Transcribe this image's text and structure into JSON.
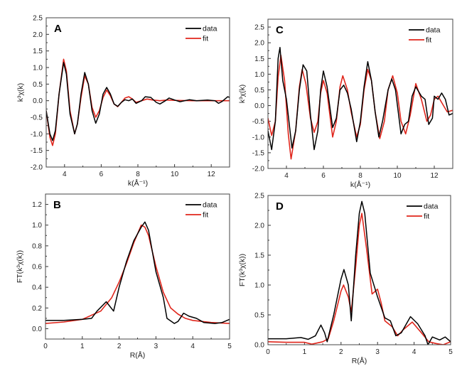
{
  "colors": {
    "data": "#000000",
    "fit": "#e0261c"
  },
  "chart_data": [
    {
      "panel": "A",
      "type": "line",
      "xlabel": "k(Å⁻¹)",
      "ylabel": "k³χ(k)",
      "xlim": [
        3,
        13
      ],
      "ylim": [
        -2.0,
        2.5
      ],
      "xticks": [
        4,
        6,
        8,
        10,
        12
      ],
      "xtick_labels": [
        "4",
        "6",
        "8",
        "10",
        "12"
      ],
      "yticks": [
        -2.0,
        -1.5,
        -1.0,
        -0.5,
        0.0,
        0.5,
        1.0,
        1.5,
        2.0,
        2.5
      ],
      "ytick_labels": [
        "-2.0",
        "-1.5",
        "-1.0",
        "-0.5",
        "0.0",
        "0.5",
        "1.0",
        "1.5",
        "2.0",
        "2.5"
      ],
      "legend": "top-right",
      "series": [
        {
          "name": "data",
          "color": "#000000",
          "x": [
            3.0,
            3.2,
            3.35,
            3.5,
            3.7,
            3.95,
            4.1,
            4.3,
            4.55,
            4.7,
            4.9,
            5.1,
            5.3,
            5.5,
            5.7,
            5.9,
            6.1,
            6.3,
            6.5,
            6.7,
            6.9,
            7.1,
            7.3,
            7.5,
            7.7,
            7.9,
            8.2,
            8.4,
            8.7,
            9.0,
            9.2,
            9.5,
            9.7,
            10.0,
            10.3,
            10.8,
            11.2,
            11.8,
            12.2,
            12.4,
            12.6,
            12.9,
            13.0
          ],
          "y": [
            -0.3,
            -1.0,
            -1.2,
            -0.9,
            0.2,
            1.15,
            0.8,
            -0.4,
            -1.0,
            -0.7,
            0.2,
            0.85,
            0.5,
            -0.3,
            -0.68,
            -0.4,
            0.2,
            0.4,
            0.2,
            -0.1,
            -0.17,
            -0.05,
            0.03,
            0.0,
            0.05,
            -0.08,
            0.0,
            0.12,
            0.1,
            -0.05,
            -0.1,
            0.0,
            0.08,
            0.02,
            -0.03,
            0.03,
            0.0,
            0.02,
            0.0,
            -0.08,
            -0.02,
            0.12,
            0.1
          ]
        },
        {
          "name": "fit",
          "color": "#e0261c",
          "x": [
            3.0,
            3.2,
            3.35,
            3.5,
            3.7,
            3.95,
            4.1,
            4.3,
            4.55,
            4.7,
            4.9,
            5.1,
            5.3,
            5.5,
            5.7,
            5.9,
            6.1,
            6.3,
            6.5,
            6.7,
            6.9,
            7.1,
            7.3,
            7.5,
            7.7,
            7.9,
            8.2,
            8.5,
            8.8,
            9.2,
            9.6,
            10.0,
            11.0,
            13.0
          ],
          "y": [
            -0.3,
            -1.1,
            -1.35,
            -1.0,
            0.2,
            1.25,
            0.9,
            -0.3,
            -1.0,
            -0.7,
            0.1,
            0.75,
            0.5,
            -0.2,
            -0.5,
            -0.3,
            0.1,
            0.32,
            0.15,
            -0.1,
            -0.18,
            -0.05,
            0.08,
            0.12,
            0.05,
            -0.05,
            0.0,
            0.05,
            0.02,
            0.0,
            0.02,
            0.01,
            0.0,
            0.0
          ]
        }
      ]
    },
    {
      "panel": "C",
      "type": "line",
      "xlabel": "k(Å⁻¹)",
      "ylabel": "k³χ(k)",
      "xlim": [
        3,
        13
      ],
      "ylim": [
        -2.0,
        2.75
      ],
      "xticks": [
        4,
        6,
        8,
        10,
        12
      ],
      "xtick_labels": [
        "4",
        "6",
        "8",
        "10",
        "12"
      ],
      "yticks": [
        -2.0,
        -1.5,
        -1.0,
        -0.5,
        0.0,
        0.5,
        1.0,
        1.5,
        2.0,
        2.5
      ],
      "ytick_labels": [
        "-2.0",
        "-1.5",
        "-1.0",
        "-0.5",
        "0.0",
        "0.5",
        "1.0",
        "1.5",
        "2.0",
        "2.5"
      ],
      "legend": "top-right",
      "series": [
        {
          "name": "data",
          "color": "#000000",
          "x": [
            3.0,
            3.2,
            3.4,
            3.55,
            3.65,
            3.8,
            4.0,
            4.3,
            4.5,
            4.7,
            4.9,
            5.1,
            5.3,
            5.5,
            5.7,
            5.85,
            6.0,
            6.2,
            6.5,
            6.7,
            6.9,
            7.1,
            7.3,
            7.5,
            7.8,
            8.0,
            8.2,
            8.4,
            8.6,
            8.8,
            9.0,
            9.2,
            9.5,
            9.7,
            9.9,
            10.2,
            10.4,
            10.6,
            10.8,
            11.0,
            11.3,
            11.5,
            11.7,
            11.9,
            12.0,
            12.2,
            12.4,
            12.6,
            12.8,
            13.0
          ],
          "y": [
            -0.8,
            -1.4,
            -0.5,
            1.5,
            1.85,
            0.8,
            0.2,
            -1.35,
            -0.8,
            0.5,
            1.3,
            1.1,
            -0.3,
            -1.4,
            -0.8,
            0.5,
            1.1,
            0.6,
            -0.7,
            -0.4,
            0.5,
            0.65,
            0.4,
            -0.1,
            -1.15,
            -0.5,
            0.6,
            1.4,
            0.8,
            -0.2,
            -1.0,
            -0.5,
            0.5,
            0.85,
            0.5,
            -0.9,
            -0.6,
            -0.5,
            0.3,
            0.6,
            0.3,
            0.2,
            -0.6,
            -0.4,
            0.3,
            0.2,
            0.4,
            0.2,
            -0.3,
            -0.25
          ]
        },
        {
          "name": "fit",
          "color": "#e0261c",
          "x": [
            3.0,
            3.2,
            3.4,
            3.55,
            3.7,
            3.9,
            4.1,
            4.25,
            4.5,
            4.7,
            4.85,
            5.05,
            5.3,
            5.5,
            5.7,
            5.85,
            6.0,
            6.2,
            6.5,
            6.7,
            6.9,
            7.05,
            7.3,
            7.5,
            7.8,
            8.0,
            8.2,
            8.4,
            8.6,
            8.8,
            9.05,
            9.3,
            9.5,
            9.75,
            10.0,
            10.2,
            10.45,
            10.7,
            11.0,
            11.3,
            11.6,
            11.8,
            12.0,
            12.2,
            12.5,
            12.7,
            13.0
          ],
          "y": [
            -0.4,
            -0.95,
            -0.5,
            0.9,
            1.6,
            0.8,
            -0.9,
            -1.7,
            -0.8,
            0.6,
            1.15,
            0.7,
            -0.4,
            -0.85,
            -0.5,
            0.4,
            0.8,
            0.4,
            -1.0,
            -0.5,
            0.6,
            0.95,
            0.5,
            -0.2,
            -1.0,
            -0.6,
            0.5,
            1.15,
            0.8,
            -0.2,
            -1.05,
            -0.5,
            0.5,
            0.95,
            0.4,
            -0.5,
            -0.9,
            -0.3,
            0.7,
            0.2,
            -0.5,
            -0.3,
            0.2,
            0.3,
            0.0,
            -0.2,
            -0.15
          ]
        }
      ]
    },
    {
      "panel": "B",
      "type": "line",
      "xlabel": "R(Å)",
      "ylabel": "FT(k³χ(k))",
      "xlim": [
        0,
        5
      ],
      "ylim": [
        -0.1,
        1.3
      ],
      "xticks": [
        0,
        1,
        2,
        3,
        4,
        5
      ],
      "xtick_labels": [
        "0",
        "1",
        "2",
        "3",
        "4",
        "5"
      ],
      "yticks": [
        0.0,
        0.2,
        0.4,
        0.6,
        0.8,
        1.0,
        1.2
      ],
      "ytick_labels": [
        "0.0",
        "0.2",
        "0.4",
        "0.6",
        "0.8",
        "1.0",
        "1.2"
      ],
      "legend": "top-right",
      "series": [
        {
          "name": "data",
          "color": "#000000",
          "x": [
            0,
            0.5,
            1.0,
            1.25,
            1.4,
            1.65,
            1.85,
            2.0,
            2.2,
            2.4,
            2.6,
            2.7,
            2.8,
            3.0,
            3.2,
            3.3,
            3.5,
            3.6,
            3.75,
            3.9,
            4.1,
            4.3,
            4.6,
            4.8,
            5.0
          ],
          "y": [
            0.08,
            0.08,
            0.09,
            0.1,
            0.17,
            0.26,
            0.17,
            0.4,
            0.65,
            0.85,
            0.98,
            1.03,
            0.95,
            0.55,
            0.3,
            0.1,
            0.05,
            0.07,
            0.15,
            0.12,
            0.1,
            0.06,
            0.05,
            0.06,
            0.09
          ]
        },
        {
          "name": "fit",
          "color": "#e0261c",
          "x": [
            0,
            0.5,
            1.0,
            1.5,
            1.8,
            2.0,
            2.2,
            2.4,
            2.6,
            2.7,
            2.8,
            3.0,
            3.2,
            3.4,
            3.6,
            3.8,
            4.0,
            4.5,
            5.0
          ],
          "y": [
            0.05,
            0.065,
            0.09,
            0.17,
            0.3,
            0.45,
            0.63,
            0.83,
            1.0,
            0.98,
            0.9,
            0.6,
            0.35,
            0.2,
            0.14,
            0.1,
            0.08,
            0.06,
            0.05
          ]
        }
      ]
    },
    {
      "panel": "D",
      "type": "line",
      "xlabel": "R(Å)",
      "ylabel": "FT(k³χ(k))",
      "xlim": [
        0,
        5
      ],
      "ylim": [
        0.0,
        2.5
      ],
      "xticks": [
        0,
        1,
        2,
        3,
        4,
        5
      ],
      "xtick_labels": [
        "0",
        "1",
        "2",
        "3",
        "4",
        "5"
      ],
      "yticks": [
        0.0,
        0.5,
        1.0,
        1.5,
        2.0,
        2.5
      ],
      "ytick_labels": [
        "0.0",
        "0.5",
        "1.0",
        "1.5",
        "2.0",
        "2.5"
      ],
      "legend": "top-right",
      "series": [
        {
          "name": "data",
          "color": "#000000",
          "x": [
            0,
            0.5,
            0.9,
            1.1,
            1.3,
            1.45,
            1.55,
            1.62,
            1.8,
            2.0,
            2.08,
            2.2,
            2.28,
            2.4,
            2.5,
            2.57,
            2.65,
            2.8,
            3.0,
            3.2,
            3.35,
            3.5,
            3.65,
            3.9,
            4.1,
            4.3,
            4.38,
            4.5,
            4.7,
            4.85,
            5.0
          ],
          "y": [
            0.1,
            0.1,
            0.12,
            0.09,
            0.15,
            0.33,
            0.2,
            0.05,
            0.5,
            1.1,
            1.26,
            1.0,
            0.4,
            1.5,
            2.2,
            2.4,
            2.2,
            1.2,
            0.8,
            0.45,
            0.4,
            0.15,
            0.2,
            0.47,
            0.35,
            0.15,
            0.0,
            0.13,
            0.08,
            0.13,
            0.05
          ]
        },
        {
          "name": "fit",
          "color": "#e0261c",
          "x": [
            0,
            0.5,
            1.0,
            1.2,
            1.5,
            1.65,
            1.8,
            2.0,
            2.07,
            2.2,
            2.28,
            2.4,
            2.5,
            2.57,
            2.7,
            2.85,
            3.0,
            3.1,
            3.2,
            3.4,
            3.55,
            3.7,
            3.95,
            4.2,
            4.4,
            4.6,
            4.8,
            5.0
          ],
          "y": [
            0.05,
            0.04,
            0.04,
            0.01,
            0.05,
            0.1,
            0.4,
            0.9,
            1.0,
            0.8,
            0.55,
            1.3,
            2.0,
            2.2,
            1.6,
            0.85,
            0.93,
            0.7,
            0.4,
            0.3,
            0.15,
            0.25,
            0.38,
            0.2,
            0.05,
            0.02,
            0.0,
            0.05
          ]
        }
      ]
    }
  ]
}
